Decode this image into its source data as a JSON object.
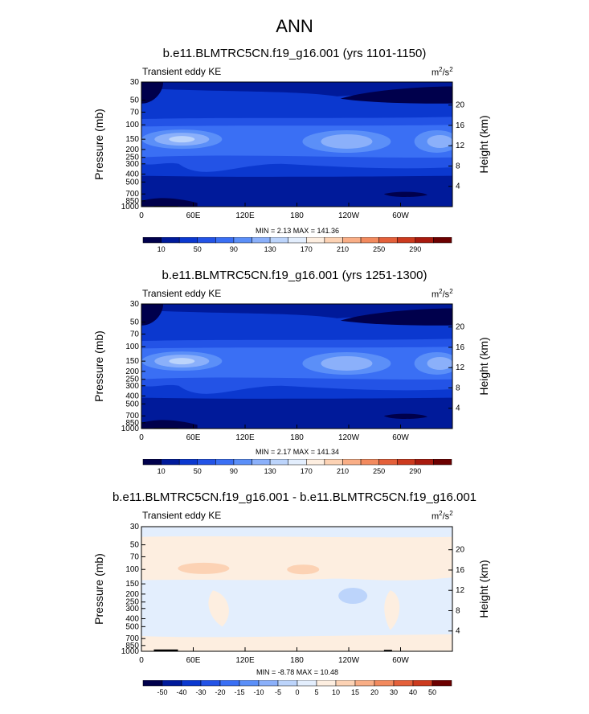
{
  "page_title": "ANN",
  "palette": [
    "#00004c",
    "#001a9a",
    "#0b38cf",
    "#2353e6",
    "#3a6ff4",
    "#5b8ff8",
    "#8bb0fa",
    "#bcd4fb",
    "#e3eefd",
    "#fdeee0",
    "#fcd2b4",
    "#f9ae86",
    "#f28a5e",
    "#e4603a",
    "#cc3a1e",
    "#a81a0e",
    "#6c0000"
  ],
  "chart_data": [
    {
      "type": "heatmap",
      "title": "b.e11.BLMTRC5CN.f19_g16.001 (yrs 1101-1150)",
      "label": "Transient eddy KE",
      "units_base": "m",
      "units_exp1": "2",
      "units_mid": "/s",
      "units_exp2": "2",
      "ylabel": "Pressure (mb)",
      "ylabel_right": "Height (km)",
      "x_ticks": [
        "0",
        "60E",
        "120E",
        "180",
        "120W",
        "60W"
      ],
      "y_ticks": [
        "30",
        "50",
        "70",
        "100",
        "150",
        "200",
        "250",
        "300",
        "400",
        "500",
        "700",
        "850",
        "1000"
      ],
      "height_ticks": [
        "20",
        "16",
        "12",
        "8",
        "4"
      ],
      "min_max": "MIN =   2.13  MAX = 141.36",
      "colorbar_labels": [
        "10",
        "50",
        "90",
        "130",
        "170",
        "210",
        "250",
        "290"
      ]
    },
    {
      "type": "heatmap",
      "title": "b.e11.BLMTRC5CN.f19_g16.001 (yrs 1251-1300)",
      "label": "Transient eddy KE",
      "units_base": "m",
      "units_exp1": "2",
      "units_mid": "/s",
      "units_exp2": "2",
      "ylabel": "Pressure (mb)",
      "ylabel_right": "Height (km)",
      "x_ticks": [
        "0",
        "60E",
        "120E",
        "180",
        "120W",
        "60W"
      ],
      "y_ticks": [
        "30",
        "50",
        "70",
        "100",
        "150",
        "200",
        "250",
        "300",
        "400",
        "500",
        "700",
        "850",
        "1000"
      ],
      "height_ticks": [
        "20",
        "16",
        "12",
        "8",
        "4"
      ],
      "min_max": "MIN =   2.17  MAX = 141.34",
      "colorbar_labels": [
        "10",
        "50",
        "90",
        "130",
        "170",
        "210",
        "250",
        "290"
      ]
    },
    {
      "type": "heatmap",
      "title": "b.e11.BLMTRC5CN.f19_g16.001 - b.e11.BLMTRC5CN.f19_g16.001",
      "label": "Transient eddy KE",
      "units_base": "m",
      "units_exp1": "2",
      "units_mid": "/s",
      "units_exp2": "2",
      "ylabel": "Pressure (mb)",
      "ylabel_right": "Height (km)",
      "x_ticks": [
        "0",
        "60E",
        "120E",
        "180",
        "120W",
        "60W"
      ],
      "y_ticks": [
        "30",
        "50",
        "70",
        "100",
        "150",
        "200",
        "250",
        "300",
        "400",
        "500",
        "700",
        "850",
        "1000"
      ],
      "height_ticks": [
        "20",
        "16",
        "12",
        "8",
        "4"
      ],
      "min_max": "MIN =  -8.78  MAX =  10.48",
      "colorbar_labels": [
        "-50",
        "-40",
        "-30",
        "-20",
        "-15",
        "-10",
        "-5",
        "0",
        "5",
        "10",
        "15",
        "20",
        "30",
        "40",
        "50"
      ]
    }
  ]
}
